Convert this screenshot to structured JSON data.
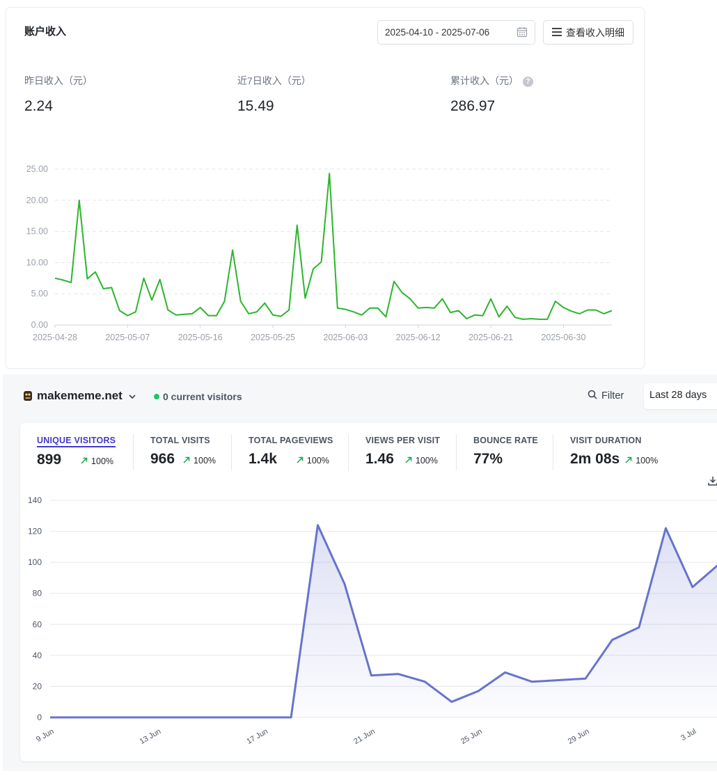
{
  "income": {
    "title": "账户收入",
    "date_range": "2025-04-10 - 2025-07-06",
    "detail_button": "查看收入明细",
    "stats": [
      {
        "label": "昨日收入（元）",
        "value": "2.24"
      },
      {
        "label": "近7日收入（元）",
        "value": "15.49"
      },
      {
        "label": "累计收入（元）",
        "value": "286.97"
      }
    ],
    "chart_data": {
      "type": "line",
      "ylim": [
        0,
        25
      ],
      "y_ticks": [
        "0.00",
        "5.00",
        "10.00",
        "15.00",
        "20.00",
        "25.00"
      ],
      "x_ticks": [
        "2025-04-28",
        "2025-05-07",
        "2025-05-16",
        "2025-05-25",
        "2025-06-03",
        "2025-06-12",
        "2025-06-21",
        "2025-06-30"
      ],
      "x_start": "2025-04-28",
      "grid": "horizontal dashed",
      "color": "#2cb52c",
      "values": [
        7.5,
        7.2,
        6.8,
        20.0,
        7.4,
        8.5,
        5.8,
        6.0,
        2.3,
        1.5,
        2.1,
        7.5,
        4.0,
        7.3,
        2.4,
        1.6,
        1.7,
        1.8,
        2.8,
        1.5,
        1.5,
        3.8,
        12.0,
        3.8,
        1.8,
        2.1,
        3.5,
        1.6,
        1.4,
        2.4,
        16.0,
        4.3,
        9.0,
        10.1,
        24.3,
        2.7,
        2.5,
        2.1,
        1.6,
        2.7,
        2.7,
        1.3,
        7.0,
        5.2,
        4.2,
        2.7,
        2.8,
        2.7,
        4.2,
        2.0,
        2.3,
        1.0,
        1.6,
        1.5,
        4.2,
        1.3,
        3.0,
        1.2,
        0.9,
        1.0,
        0.9,
        0.9,
        3.8,
        2.8,
        2.2,
        1.8,
        2.4,
        2.4,
        1.8,
        2.3
      ]
    }
  },
  "analytics": {
    "site": "makememe.net",
    "live": "0 current visitors",
    "filter": "Filter",
    "period": "Last 28 days",
    "metrics": [
      {
        "label": "UNIQUE VISITORS",
        "value": "899",
        "change": "100%"
      },
      {
        "label": "TOTAL VISITS",
        "value": "966",
        "change": "100%"
      },
      {
        "label": "TOTAL PAGEVIEWS",
        "value": "1.4k",
        "change": "100%"
      },
      {
        "label": "VIEWS PER VISIT",
        "value": "1.46",
        "change": "100%"
      },
      {
        "label": "BOUNCE RATE",
        "value": "77%",
        "change": ""
      },
      {
        "label": "VISIT DURATION",
        "value": "2m 08s",
        "change": "100%"
      }
    ],
    "chart_data": {
      "type": "area",
      "ylim": [
        0,
        140
      ],
      "y_ticks": [
        "0",
        "20",
        "40",
        "60",
        "80",
        "100",
        "120",
        "140"
      ],
      "x_ticks": [
        "9 Jun",
        "13 Jun",
        "17 Jun",
        "21 Jun",
        "25 Jun",
        "29 Jun",
        "3 Jul"
      ],
      "x": [
        "9 Jun",
        "10 Jun",
        "11 Jun",
        "12 Jun",
        "13 Jun",
        "14 Jun",
        "15 Jun",
        "16 Jun",
        "17 Jun",
        "18 Jun",
        "19 Jun",
        "20 Jun",
        "21 Jun",
        "22 Jun",
        "23 Jun",
        "24 Jun",
        "25 Jun",
        "26 Jun",
        "27 Jun",
        "28 Jun",
        "29 Jun",
        "30 Jun",
        "1 Jul",
        "2 Jul",
        "3 Jul",
        "4 Jul"
      ],
      "values": [
        0,
        0,
        0,
        0,
        0,
        0,
        0,
        0,
        0,
        0,
        124,
        86,
        27,
        28,
        23,
        10,
        17,
        29,
        23,
        24,
        25,
        50,
        58,
        122,
        84,
        99
      ],
      "color": "#6674cc"
    }
  }
}
